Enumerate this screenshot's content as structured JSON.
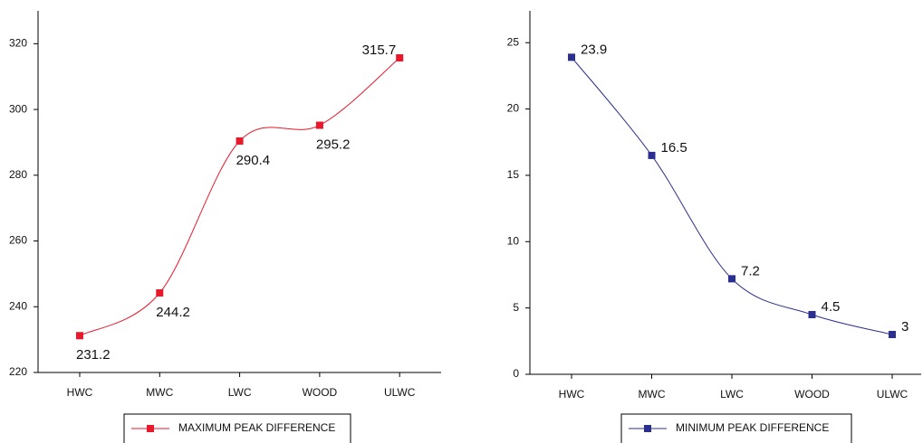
{
  "chart_data": [
    {
      "type": "line",
      "categories": [
        "HWC",
        "MWC",
        "LWC",
        "WOOD",
        "ULWC"
      ],
      "series": [
        {
          "name": "MAXIMUM PEAK DIFFERENCE",
          "color": "#e8192c",
          "values": [
            231.2,
            244.2,
            290.4,
            295.2,
            315.7
          ]
        }
      ],
      "ylim": [
        220,
        330
      ],
      "yticks": [
        220,
        240,
        260,
        280,
        300,
        320
      ]
    },
    {
      "type": "line",
      "categories": [
        "HWC",
        "MWC",
        "LWC",
        "WOOD",
        "ULWC"
      ],
      "series": [
        {
          "name": "MINIMUM PEAK DIFFERENCE",
          "color": "#2b2f8f",
          "values": [
            23.9,
            16.5,
            7.2,
            4.5,
            3
          ]
        }
      ],
      "ylim": [
        0,
        27.4
      ],
      "yticks": [
        0,
        5,
        10,
        15,
        20,
        25
      ]
    }
  ]
}
